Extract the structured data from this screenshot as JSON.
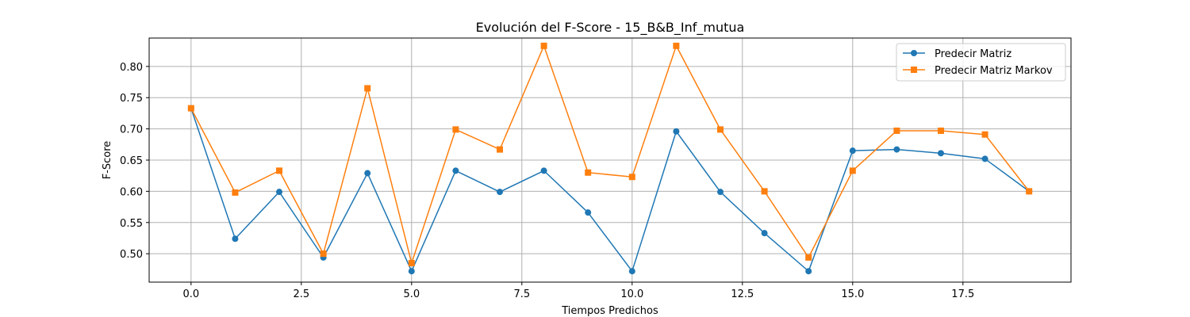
{
  "chart_data": {
    "type": "line",
    "title": "Evolución del F-Score - 15_B&B_Inf_mutua",
    "xlabel": "Tiempos Predichos",
    "ylabel": "F-Score",
    "xlim": [
      -0.95,
      19.95
    ],
    "ylim": [
      0.4545,
      0.8455
    ],
    "x_ticks": [
      0.0,
      2.5,
      5.0,
      7.5,
      10.0,
      12.5,
      15.0,
      17.5
    ],
    "x_tick_labels": [
      "0.0",
      "2.5",
      "5.0",
      "7.5",
      "10.0",
      "12.5",
      "15.0",
      "17.5"
    ],
    "y_ticks": [
      0.5,
      0.55,
      0.6,
      0.65,
      0.7,
      0.75,
      0.8
    ],
    "y_tick_labels": [
      "0.50",
      "0.55",
      "0.60",
      "0.65",
      "0.70",
      "0.75",
      "0.80"
    ],
    "grid": true,
    "legend_position": "top-right",
    "x": [
      0,
      1,
      2,
      3,
      4,
      5,
      6,
      7,
      8,
      9,
      10,
      11,
      12,
      13,
      14,
      15,
      16,
      17,
      18,
      19
    ],
    "series": [
      {
        "name": "Predecir Matriz",
        "color": "#1f77b4",
        "marker": "circle",
        "values": [
          0.733,
          0.524,
          0.599,
          0.494,
          0.629,
          0.472,
          0.633,
          0.599,
          0.633,
          0.566,
          0.472,
          0.696,
          0.599,
          0.533,
          0.472,
          0.665,
          0.667,
          0.661,
          0.652,
          0.6
        ]
      },
      {
        "name": "Predecir Matriz Markov",
        "color": "#ff7f0e",
        "marker": "square",
        "values": [
          0.733,
          0.598,
          0.633,
          0.5,
          0.765,
          0.485,
          0.699,
          0.667,
          0.833,
          0.63,
          0.623,
          0.833,
          0.699,
          0.6,
          0.494,
          0.633,
          0.697,
          0.697,
          0.691,
          0.6
        ]
      }
    ]
  }
}
